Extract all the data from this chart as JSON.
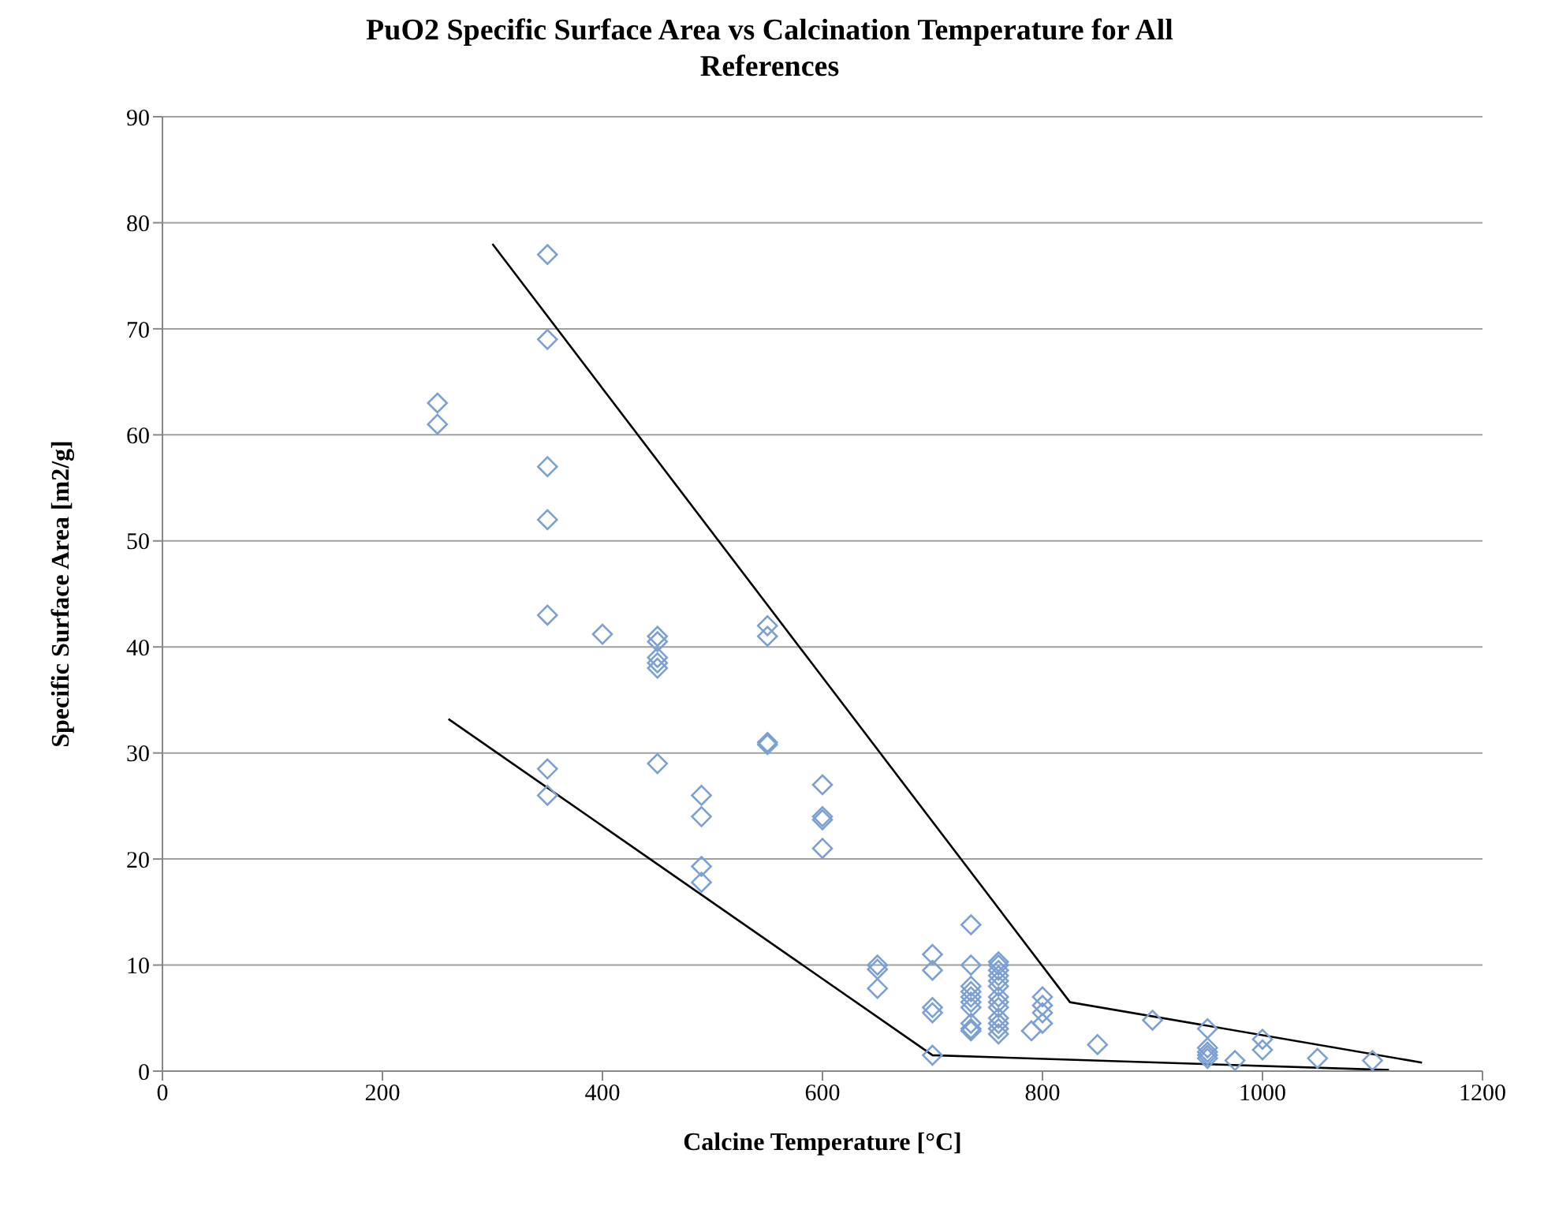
{
  "chart_data": {
    "type": "scatter",
    "title": "PuO2 Specific Surface Area vs Calcination Temperature for All References",
    "xlabel": "Calcine Temperature [°C]",
    "ylabel": "Specific Surface Area  [m2/g]",
    "xlim": [
      0,
      1200
    ],
    "xticks": [
      0,
      200,
      400,
      600,
      800,
      1000,
      1200
    ],
    "ylim": [
      0,
      90
    ],
    "yticks": [
      0,
      10,
      20,
      30,
      40,
      50,
      60,
      70,
      80,
      90
    ],
    "grid": "y",
    "series": [
      {
        "marker": "diamond",
        "color": "#7ba0d4",
        "x": [
          250,
          250,
          350,
          350,
          350,
          350,
          350,
          350,
          350,
          400,
          450,
          450,
          450,
          450,
          450,
          450,
          490,
          490,
          490,
          490,
          550,
          550,
          550,
          550,
          600,
          600,
          600,
          600,
          650,
          650,
          650,
          700,
          700,
          700,
          700,
          700,
          735,
          735,
          735,
          735,
          735,
          735,
          735,
          735,
          735,
          735,
          760,
          760,
          760,
          760,
          760,
          760,
          760,
          760,
          760,
          760,
          760,
          760,
          760,
          790,
          800,
          800,
          800,
          800,
          850,
          900,
          950,
          950,
          950,
          950,
          950,
          975,
          1000,
          1000,
          1050,
          1100
        ],
        "values": [
          63,
          61,
          77,
          69,
          57,
          52,
          43,
          28.5,
          26,
          41.2,
          41,
          40.5,
          39,
          38.5,
          38,
          29,
          26,
          24,
          19.3,
          17.8,
          42,
          41,
          31,
          30.8,
          27,
          24,
          23.7,
          21,
          10,
          9.6,
          7.8,
          11,
          9.5,
          6,
          5.5,
          1.5,
          13.8,
          10,
          8,
          7.5,
          7,
          6.5,
          6,
          4.5,
          4,
          3.8,
          10.3,
          10,
          9.5,
          9,
          8.5,
          8,
          7,
          6.5,
          6,
          5,
          4.5,
          4,
          3.5,
          3.8,
          7,
          6.2,
          5.5,
          4.5,
          2.5,
          4.8,
          4,
          2.2,
          1.8,
          1.5,
          1.2,
          1,
          3,
          2,
          1.2,
          1
        ]
      },
      {
        "type": "line",
        "marker": "none",
        "color": "#000000",
        "x": [
          300,
          825,
          1145
        ],
        "values": [
          78,
          6.5,
          0.8
        ]
      },
      {
        "type": "line",
        "marker": "none",
        "color": "#000000",
        "x": [
          260,
          700,
          1115
        ],
        "values": [
          33.2,
          1.5,
          0.1
        ]
      }
    ]
  }
}
